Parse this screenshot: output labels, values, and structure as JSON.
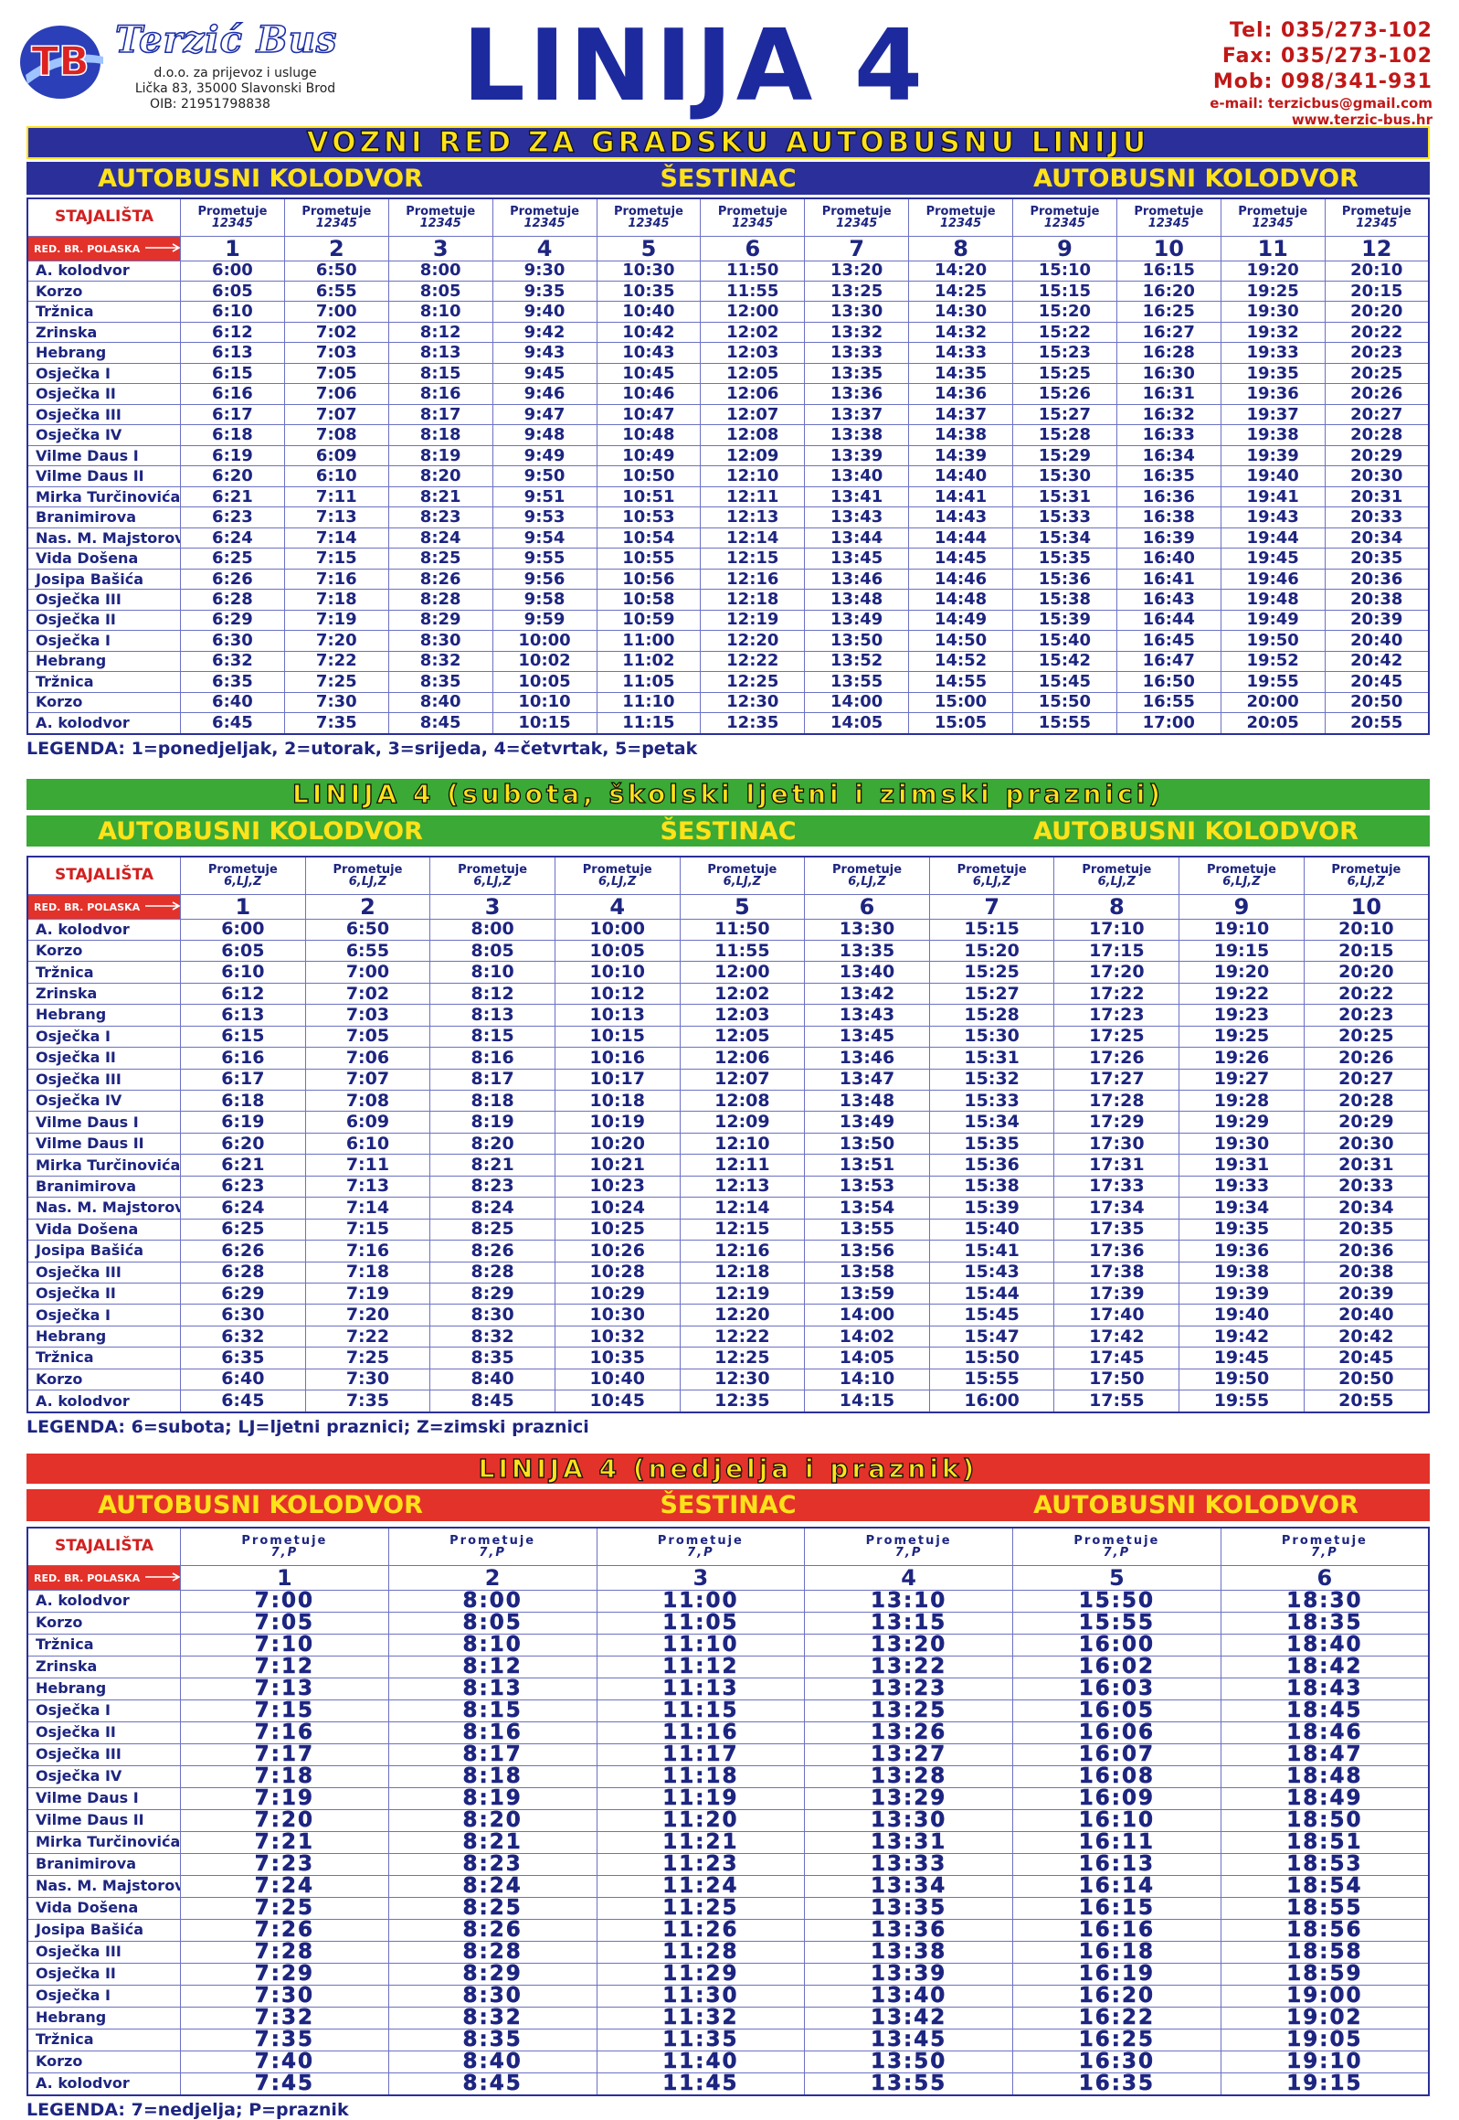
{
  "header": {
    "logo": "TB",
    "company": "Terzić Bus",
    "subtitle": "d.o.o. za prijevoz i usluge",
    "address": "Lička 83, 35000 Slavonski Brod",
    "oib": "OIB: 21951798838",
    "title": "LINIJA 4",
    "contacts": [
      "Tel: 035/273-102",
      "Fax: 035/273-102",
      "Mob: 098/341-931",
      "e-mail: terzicbus@gmail.com",
      "www.terzic-bus.hr"
    ]
  },
  "tables": [
    {
      "banner": "VOZNI RED ZA GRADSKU AUTOBUSNU LINIJU",
      "route": [
        "AUTOBUSNI KOLODVOR",
        "ŠESTINAC",
        "AUTOBUSNI KOLODVOR"
      ],
      "stops_header": "STAJALIŠTA",
      "departure_header": "RED. BR. POLASKA",
      "columns": [
        {
          "operates": "Prometuje",
          "days": "12345",
          "no": 1
        },
        {
          "operates": "Prometuje",
          "days": "12345",
          "no": 2
        },
        {
          "operates": "Prometuje",
          "days": "12345",
          "no": 3
        },
        {
          "operates": "Prometuje",
          "days": "12345",
          "no": 4
        },
        {
          "operates": "Prometuje",
          "days": "12345",
          "no": 5
        },
        {
          "operates": "Prometuje",
          "days": "12345",
          "no": 6
        },
        {
          "operates": "Prometuje",
          "days": "12345",
          "no": 7
        },
        {
          "operates": "Prometuje",
          "days": "12345",
          "no": 8
        },
        {
          "operates": "Prometuje",
          "days": "12345",
          "no": 9
        },
        {
          "operates": "Prometuje",
          "days": "12345",
          "no": 10
        },
        {
          "operates": "Prometuje",
          "days": "12345",
          "no": 11
        },
        {
          "operates": "Prometuje",
          "days": "12345",
          "no": 12
        }
      ],
      "rows": [
        [
          "A. kolodvor",
          "6:00",
          "6:50",
          "8:00",
          "9:30",
          "10:30",
          "11:50",
          "13:20",
          "14:20",
          "15:10",
          "16:15",
          "19:20",
          "20:10"
        ],
        [
          "Korzo",
          "6:05",
          "6:55",
          "8:05",
          "9:35",
          "10:35",
          "11:55",
          "13:25",
          "14:25",
          "15:15",
          "16:20",
          "19:25",
          "20:15"
        ],
        [
          "Tržnica",
          "6:10",
          "7:00",
          "8:10",
          "9:40",
          "10:40",
          "12:00",
          "13:30",
          "14:30",
          "15:20",
          "16:25",
          "19:30",
          "20:20"
        ],
        [
          "Zrinska",
          "6:12",
          "7:02",
          "8:12",
          "9:42",
          "10:42",
          "12:02",
          "13:32",
          "14:32",
          "15:22",
          "16:27",
          "19:32",
          "20:22"
        ],
        [
          "Hebrang",
          "6:13",
          "7:03",
          "8:13",
          "9:43",
          "10:43",
          "12:03",
          "13:33",
          "14:33",
          "15:23",
          "16:28",
          "19:33",
          "20:23"
        ],
        [
          "Osječka I",
          "6:15",
          "7:05",
          "8:15",
          "9:45",
          "10:45",
          "12:05",
          "13:35",
          "14:35",
          "15:25",
          "16:30",
          "19:35",
          "20:25"
        ],
        [
          "Osječka II",
          "6:16",
          "7:06",
          "8:16",
          "9:46",
          "10:46",
          "12:06",
          "13:36",
          "14:36",
          "15:26",
          "16:31",
          "19:36",
          "20:26"
        ],
        [
          "Osječka III",
          "6:17",
          "7:07",
          "8:17",
          "9:47",
          "10:47",
          "12:07",
          "13:37",
          "14:37",
          "15:27",
          "16:32",
          "19:37",
          "20:27"
        ],
        [
          "Osječka IV",
          "6:18",
          "7:08",
          "8:18",
          "9:48",
          "10:48",
          "12:08",
          "13:38",
          "14:38",
          "15:28",
          "16:33",
          "19:38",
          "20:28"
        ],
        [
          "Vilme Daus I",
          "6:19",
          "6:09",
          "8:19",
          "9:49",
          "10:49",
          "12:09",
          "13:39",
          "14:39",
          "15:29",
          "16:34",
          "19:39",
          "20:29"
        ],
        [
          "Vilme Daus II",
          "6:20",
          "6:10",
          "8:20",
          "9:50",
          "10:50",
          "12:10",
          "13:40",
          "14:40",
          "15:30",
          "16:35",
          "19:40",
          "20:30"
        ],
        [
          "Mirka Turčinovića",
          "6:21",
          "7:11",
          "8:21",
          "9:51",
          "10:51",
          "12:11",
          "13:41",
          "14:41",
          "15:31",
          "16:36",
          "19:41",
          "20:31"
        ],
        [
          "Branimirova",
          "6:23",
          "7:13",
          "8:23",
          "9:53",
          "10:53",
          "12:13",
          "13:43",
          "14:43",
          "15:33",
          "16:38",
          "19:43",
          "20:33"
        ],
        [
          "Nas. M. Majstorovića",
          "6:24",
          "7:14",
          "8:24",
          "9:54",
          "10:54",
          "12:14",
          "13:44",
          "14:44",
          "15:34",
          "16:39",
          "19:44",
          "20:34"
        ],
        [
          "Vida Došena",
          "6:25",
          "7:15",
          "8:25",
          "9:55",
          "10:55",
          "12:15",
          "13:45",
          "14:45",
          "15:35",
          "16:40",
          "19:45",
          "20:35"
        ],
        [
          "Josipa Bašića",
          "6:26",
          "7:16",
          "8:26",
          "9:56",
          "10:56",
          "12:16",
          "13:46",
          "14:46",
          "15:36",
          "16:41",
          "19:46",
          "20:36"
        ],
        [
          "Osječka III",
          "6:28",
          "7:18",
          "8:28",
          "9:58",
          "10:58",
          "12:18",
          "13:48",
          "14:48",
          "15:38",
          "16:43",
          "19:48",
          "20:38"
        ],
        [
          "Osječka II",
          "6:29",
          "7:19",
          "8:29",
          "9:59",
          "10:59",
          "12:19",
          "13:49",
          "14:49",
          "15:39",
          "16:44",
          "19:49",
          "20:39"
        ],
        [
          "Osječka I",
          "6:30",
          "7:20",
          "8:30",
          "10:00",
          "11:00",
          "12:20",
          "13:50",
          "14:50",
          "15:40",
          "16:45",
          "19:50",
          "20:40"
        ],
        [
          "Hebrang",
          "6:32",
          "7:22",
          "8:32",
          "10:02",
          "11:02",
          "12:22",
          "13:52",
          "14:52",
          "15:42",
          "16:47",
          "19:52",
          "20:42"
        ],
        [
          "Tržnica",
          "6:35",
          "7:25",
          "8:35",
          "10:05",
          "11:05",
          "12:25",
          "13:55",
          "14:55",
          "15:45",
          "16:50",
          "19:55",
          "20:45"
        ],
        [
          "Korzo",
          "6:40",
          "7:30",
          "8:40",
          "10:10",
          "11:10",
          "12:30",
          "14:00",
          "15:00",
          "15:50",
          "16:55",
          "20:00",
          "20:50"
        ],
        [
          "A. kolodvor",
          "6:45",
          "7:35",
          "8:45",
          "10:15",
          "11:15",
          "12:35",
          "14:05",
          "15:05",
          "15:55",
          "17:00",
          "20:05",
          "20:55"
        ]
      ],
      "legend": "LEGENDA: 1=ponedjeljak, 2=utorak, 3=srijeda, 4=četvrtak, 5=petak"
    },
    {
      "banner": "LINIJA 4 (subota, školski ljetni i zimski praznici)",
      "route": [
        "AUTOBUSNI KOLODVOR",
        "ŠESTINAC",
        "AUTOBUSNI KOLODVOR"
      ],
      "stops_header": "STAJALIŠTA",
      "departure_header": "RED. BR. POLASKA",
      "columns": [
        {
          "operates": "Prometuje",
          "days": "6,LJ,Z",
          "no": 1
        },
        {
          "operates": "Prometuje",
          "days": "6,LJ,Z",
          "no": 2
        },
        {
          "operates": "Prometuje",
          "days": "6,LJ,Z",
          "no": 3
        },
        {
          "operates": "Prometuje",
          "days": "6,LJ,Z",
          "no": 4
        },
        {
          "operates": "Prometuje",
          "days": "6,LJ,Z",
          "no": 5
        },
        {
          "operates": "Prometuje",
          "days": "6,LJ,Z",
          "no": 6
        },
        {
          "operates": "Prometuje",
          "days": "6,LJ,Z",
          "no": 7
        },
        {
          "operates": "Prometuje",
          "days": "6,LJ,Z",
          "no": 8
        },
        {
          "operates": "Prometuje",
          "days": "6,LJ,Z",
          "no": 9
        },
        {
          "operates": "Prometuje",
          "days": "6,LJ,Z",
          "no": 10
        }
      ],
      "rows": [
        [
          "A. kolodvor",
          "6:00",
          "6:50",
          "8:00",
          "10:00",
          "11:50",
          "13:30",
          "15:15",
          "17:10",
          "19:10",
          "20:10"
        ],
        [
          "Korzo",
          "6:05",
          "6:55",
          "8:05",
          "10:05",
          "11:55",
          "13:35",
          "15:20",
          "17:15",
          "19:15",
          "20:15"
        ],
        [
          "Tržnica",
          "6:10",
          "7:00",
          "8:10",
          "10:10",
          "12:00",
          "13:40",
          "15:25",
          "17:20",
          "19:20",
          "20:20"
        ],
        [
          "Zrinska",
          "6:12",
          "7:02",
          "8:12",
          "10:12",
          "12:02",
          "13:42",
          "15:27",
          "17:22",
          "19:22",
          "20:22"
        ],
        [
          "Hebrang",
          "6:13",
          "7:03",
          "8:13",
          "10:13",
          "12:03",
          "13:43",
          "15:28",
          "17:23",
          "19:23",
          "20:23"
        ],
        [
          "Osječka I",
          "6:15",
          "7:05",
          "8:15",
          "10:15",
          "12:05",
          "13:45",
          "15:30",
          "17:25",
          "19:25",
          "20:25"
        ],
        [
          "Osječka II",
          "6:16",
          "7:06",
          "8:16",
          "10:16",
          "12:06",
          "13:46",
          "15:31",
          "17:26",
          "19:26",
          "20:26"
        ],
        [
          "Osječka III",
          "6:17",
          "7:07",
          "8:17",
          "10:17",
          "12:07",
          "13:47",
          "15:32",
          "17:27",
          "19:27",
          "20:27"
        ],
        [
          "Osječka IV",
          "6:18",
          "7:08",
          "8:18",
          "10:18",
          "12:08",
          "13:48",
          "15:33",
          "17:28",
          "19:28",
          "20:28"
        ],
        [
          "Vilme Daus I",
          "6:19",
          "6:09",
          "8:19",
          "10:19",
          "12:09",
          "13:49",
          "15:34",
          "17:29",
          "19:29",
          "20:29"
        ],
        [
          "Vilme Daus II",
          "6:20",
          "6:10",
          "8:20",
          "10:20",
          "12:10",
          "13:50",
          "15:35",
          "17:30",
          "19:30",
          "20:30"
        ],
        [
          "Mirka Turčinovića",
          "6:21",
          "7:11",
          "8:21",
          "10:21",
          "12:11",
          "13:51",
          "15:36",
          "17:31",
          "19:31",
          "20:31"
        ],
        [
          "Branimirova",
          "6:23",
          "7:13",
          "8:23",
          "10:23",
          "12:13",
          "13:53",
          "15:38",
          "17:33",
          "19:33",
          "20:33"
        ],
        [
          "Nas. M. Majstorovića",
          "6:24",
          "7:14",
          "8:24",
          "10:24",
          "12:14",
          "13:54",
          "15:39",
          "17:34",
          "19:34",
          "20:34"
        ],
        [
          "Vida Došena",
          "6:25",
          "7:15",
          "8:25",
          "10:25",
          "12:15",
          "13:55",
          "15:40",
          "17:35",
          "19:35",
          "20:35"
        ],
        [
          "Josipa Bašića",
          "6:26",
          "7:16",
          "8:26",
          "10:26",
          "12:16",
          "13:56",
          "15:41",
          "17:36",
          "19:36",
          "20:36"
        ],
        [
          "Osječka III",
          "6:28",
          "7:18",
          "8:28",
          "10:28",
          "12:18",
          "13:58",
          "15:43",
          "17:38",
          "19:38",
          "20:38"
        ],
        [
          "Osječka II",
          "6:29",
          "7:19",
          "8:29",
          "10:29",
          "12:19",
          "13:59",
          "15:44",
          "17:39",
          "19:39",
          "20:39"
        ],
        [
          "Osječka I",
          "6:30",
          "7:20",
          "8:30",
          "10:30",
          "12:20",
          "14:00",
          "15:45",
          "17:40",
          "19:40",
          "20:40"
        ],
        [
          "Hebrang",
          "6:32",
          "7:22",
          "8:32",
          "10:32",
          "12:22",
          "14:02",
          "15:47",
          "17:42",
          "19:42",
          "20:42"
        ],
        [
          "Tržnica",
          "6:35",
          "7:25",
          "8:35",
          "10:35",
          "12:25",
          "14:05",
          "15:50",
          "17:45",
          "19:45",
          "20:45"
        ],
        [
          "Korzo",
          "6:40",
          "7:30",
          "8:40",
          "10:40",
          "12:30",
          "14:10",
          "15:55",
          "17:50",
          "19:50",
          "20:50"
        ],
        [
          "A. kolodvor",
          "6:45",
          "7:35",
          "8:45",
          "10:45",
          "12:35",
          "14:15",
          "16:00",
          "17:55",
          "19:55",
          "20:55"
        ]
      ],
      "legend": "LEGENDA: 6=subota; LJ=ljetni praznici; Z=zimski praznici"
    },
    {
      "banner": "LINIJA 4 (nedjelja i praznik)",
      "route": [
        "AUTOBUSNI KOLODVOR",
        "ŠESTINAC",
        "AUTOBUSNI KOLODVOR"
      ],
      "stops_header": "STAJALIŠTA",
      "departure_header": "RED. BR. POLASKA",
      "columns": [
        {
          "operates": "Prometuje",
          "days": "7,P",
          "no": 1
        },
        {
          "operates": "Prometuje",
          "days": "7,P",
          "no": 2
        },
        {
          "operates": "Prometuje",
          "days": "7,P",
          "no": 3
        },
        {
          "operates": "Prometuje",
          "days": "7,P",
          "no": 4
        },
        {
          "operates": "Prometuje",
          "days": "7,P",
          "no": 5
        },
        {
          "operates": "Prometuje",
          "days": "7,P",
          "no": 6
        }
      ],
      "rows": [
        [
          "A. kolodvor",
          "7:00",
          "8:00",
          "11:00",
          "13:10",
          "15:50",
          "18:30"
        ],
        [
          "Korzo",
          "7:05",
          "8:05",
          "11:05",
          "13:15",
          "15:55",
          "18:35"
        ],
        [
          "Tržnica",
          "7:10",
          "8:10",
          "11:10",
          "13:20",
          "16:00",
          "18:40"
        ],
        [
          "Zrinska",
          "7:12",
          "8:12",
          "11:12",
          "13:22",
          "16:02",
          "18:42"
        ],
        [
          "Hebrang",
          "7:13",
          "8:13",
          "11:13",
          "13:23",
          "16:03",
          "18:43"
        ],
        [
          "Osječka I",
          "7:15",
          "8:15",
          "11:15",
          "13:25",
          "16:05",
          "18:45"
        ],
        [
          "Osječka II",
          "7:16",
          "8:16",
          "11:16",
          "13:26",
          "16:06",
          "18:46"
        ],
        [
          "Osječka III",
          "7:17",
          "8:17",
          "11:17",
          "13:27",
          "16:07",
          "18:47"
        ],
        [
          "Osječka IV",
          "7:18",
          "8:18",
          "11:18",
          "13:28",
          "16:08",
          "18:48"
        ],
        [
          "Vilme Daus I",
          "7:19",
          "8:19",
          "11:19",
          "13:29",
          "16:09",
          "18:49"
        ],
        [
          "Vilme Daus II",
          "7:20",
          "8:20",
          "11:20",
          "13:30",
          "16:10",
          "18:50"
        ],
        [
          "Mirka Turčinovića",
          "7:21",
          "8:21",
          "11:21",
          "13:31",
          "16:11",
          "18:51"
        ],
        [
          "Branimirova",
          "7:23",
          "8:23",
          "11:23",
          "13:33",
          "16:13",
          "18:53"
        ],
        [
          "Nas. M. Majstorovića",
          "7:24",
          "8:24",
          "11:24",
          "13:34",
          "16:14",
          "18:54"
        ],
        [
          "Vida Došena",
          "7:25",
          "8:25",
          "11:25",
          "13:35",
          "16:15",
          "18:55"
        ],
        [
          "Josipa Bašića",
          "7:26",
          "8:26",
          "11:26",
          "13:36",
          "16:16",
          "18:56"
        ],
        [
          "Osječka III",
          "7:28",
          "8:28",
          "11:28",
          "13:38",
          "16:18",
          "18:58"
        ],
        [
          "Osječka II",
          "7:29",
          "8:29",
          "11:29",
          "13:39",
          "16:19",
          "18:59"
        ],
        [
          "Osječka I",
          "7:30",
          "8:30",
          "11:30",
          "13:40",
          "16:20",
          "19:00"
        ],
        [
          "Hebrang",
          "7:32",
          "8:32",
          "11:32",
          "13:42",
          "16:22",
          "19:02"
        ],
        [
          "Tržnica",
          "7:35",
          "8:35",
          "11:35",
          "13:45",
          "16:25",
          "19:05"
        ],
        [
          "Korzo",
          "7:40",
          "8:40",
          "11:40",
          "13:50",
          "16:30",
          "19:10"
        ],
        [
          "A. kolodvor",
          "7:45",
          "8:45",
          "11:45",
          "13:55",
          "16:35",
          "19:15"
        ]
      ],
      "legend": "LEGENDA: 7=nedjelja; P=praznik"
    }
  ]
}
